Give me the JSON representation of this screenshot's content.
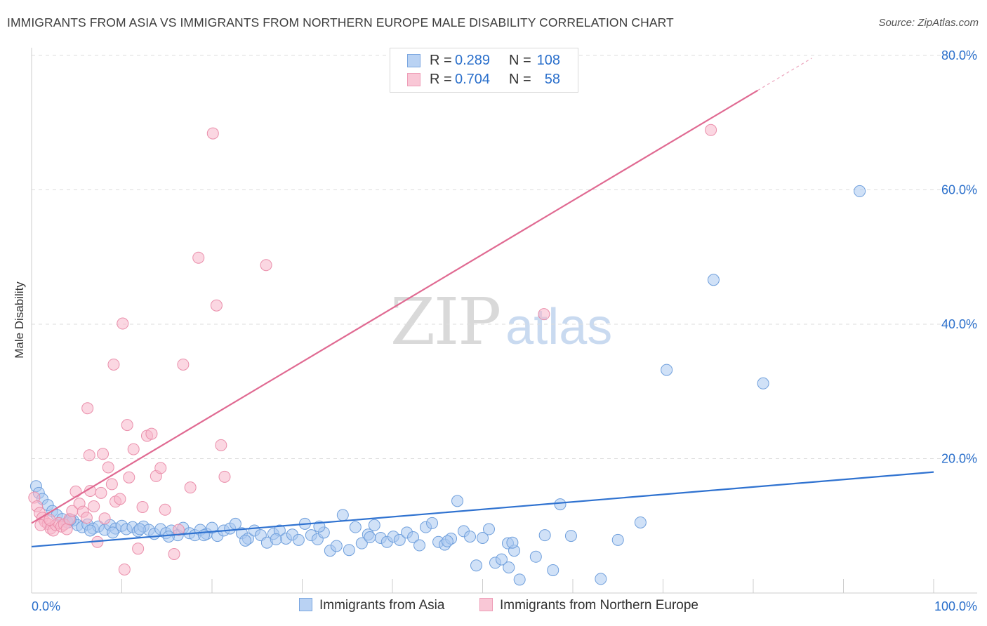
{
  "header": {
    "title": "IMMIGRANTS FROM ASIA VS IMMIGRANTS FROM NORTHERN EUROPE MALE DISABILITY CORRELATION CHART",
    "source": "Source: ZipAtlas.com"
  },
  "watermark": {
    "zip": "ZIP",
    "atlas": "atlas"
  },
  "legend_top": {
    "rows": [
      {
        "r_label": "R =",
        "r_value": "0.289",
        "n_label": "N =",
        "n_value": "108"
      },
      {
        "r_label": "R =",
        "r_value": "0.704",
        "n_label": "N =",
        "n_value": "58"
      }
    ]
  },
  "legend_bottom": {
    "items": [
      {
        "label": "Immigrants from Asia"
      },
      {
        "label": "Immigrants from Northern Europe"
      }
    ]
  },
  "colors": {
    "asia_fill": "#a9c8f0",
    "asia_stroke": "#6f9fdc",
    "asia_line": "#2f72d0",
    "europe_fill": "#f8b7cb",
    "europe_stroke": "#ea8fab",
    "europe_line": "#e06a92",
    "grid": "#dddddd",
    "tick_label": "#2a6fcb"
  },
  "chart_data": {
    "type": "scatter",
    "title": "IMMIGRANTS FROM ASIA VS IMMIGRANTS FROM NORTHERN EUROPE MALE DISABILITY CORRELATION CHART",
    "xlabel": "",
    "ylabel": "Male Disability",
    "xlim": [
      0,
      100
    ],
    "ylim": [
      0,
      80
    ],
    "x_tick_labels": [
      "0.0%",
      "100.0%"
    ],
    "y_ticks": [
      20,
      40,
      60,
      80
    ],
    "y_tick_labels": [
      "20.0%",
      "40.0%",
      "60.0%",
      "80.0%"
    ],
    "series": [
      {
        "name": "Immigrants from Asia",
        "r": 0.289,
        "n": 108,
        "trend": {
          "x": [
            0,
            100
          ],
          "y": [
            6.9,
            18.0
          ]
        },
        "points": [
          [
            0.5,
            15.9
          ],
          [
            0.8,
            14.9
          ],
          [
            1.2,
            14.0
          ],
          [
            1.8,
            13.1
          ],
          [
            2.3,
            12.2
          ],
          [
            2.8,
            11.6
          ],
          [
            3.4,
            11.0
          ],
          [
            4.0,
            10.5
          ],
          [
            4.6,
            10.8
          ],
          [
            5.1,
            10.1
          ],
          [
            5.6,
            9.8
          ],
          [
            6.2,
            10.2
          ],
          [
            6.8,
            9.6
          ],
          [
            7.4,
            9.9
          ],
          [
            8.1,
            9.4
          ],
          [
            8.7,
            10.1
          ],
          [
            9.3,
            9.6
          ],
          [
            10.0,
            10.0
          ],
          [
            10.5,
            9.5
          ],
          [
            11.2,
            9.8
          ],
          [
            11.8,
            9.2
          ],
          [
            12.4,
            9.9
          ],
          [
            13.0,
            9.4
          ],
          [
            13.6,
            8.8
          ],
          [
            14.3,
            9.5
          ],
          [
            14.9,
            8.9
          ],
          [
            15.5,
            9.3
          ],
          [
            16.2,
            8.6
          ],
          [
            16.8,
            9.7
          ],
          [
            17.5,
            8.9
          ],
          [
            18.1,
            8.6
          ],
          [
            18.7,
            9.4
          ],
          [
            19.4,
            8.8
          ],
          [
            20.0,
            9.7
          ],
          [
            20.6,
            8.5
          ],
          [
            21.3,
            9.3
          ],
          [
            22.0,
            9.6
          ],
          [
            22.6,
            10.3
          ],
          [
            23.3,
            8.9
          ],
          [
            24.0,
            8.1
          ],
          [
            24.7,
            9.3
          ],
          [
            25.4,
            8.6
          ],
          [
            26.1,
            7.5
          ],
          [
            26.8,
            8.8
          ],
          [
            27.5,
            9.3
          ],
          [
            28.2,
            8.1
          ],
          [
            28.9,
            8.7
          ],
          [
            29.6,
            7.9
          ],
          [
            30.3,
            10.3
          ],
          [
            31.0,
            8.6
          ],
          [
            31.7,
            8.0
          ],
          [
            32.4,
            9.0
          ],
          [
            33.1,
            6.3
          ],
          [
            33.8,
            7.0
          ],
          [
            34.5,
            11.6
          ],
          [
            35.2,
            6.4
          ],
          [
            35.9,
            9.8
          ],
          [
            36.6,
            7.4
          ],
          [
            37.3,
            8.7
          ],
          [
            38.0,
            10.1
          ],
          [
            38.7,
            8.2
          ],
          [
            39.4,
            7.6
          ],
          [
            40.1,
            8.4
          ],
          [
            40.8,
            7.9
          ],
          [
            41.6,
            9.0
          ],
          [
            42.3,
            8.3
          ],
          [
            43.0,
            7.1
          ],
          [
            43.7,
            9.8
          ],
          [
            44.4,
            10.4
          ],
          [
            45.1,
            7.6
          ],
          [
            45.8,
            7.2
          ],
          [
            46.5,
            8.1
          ],
          [
            47.2,
            13.7
          ],
          [
            47.9,
            9.2
          ],
          [
            48.6,
            8.4
          ],
          [
            49.3,
            4.1
          ],
          [
            50.0,
            8.2
          ],
          [
            50.7,
            9.5
          ],
          [
            51.4,
            4.5
          ],
          [
            52.1,
            5.0
          ],
          [
            52.8,
            7.4
          ],
          [
            53.5,
            6.3
          ],
          [
            54.1,
            2.0
          ],
          [
            55.9,
            5.4
          ],
          [
            56.9,
            8.6
          ],
          [
            57.8,
            3.4
          ],
          [
            58.6,
            13.2
          ],
          [
            59.8,
            8.5
          ],
          [
            63.1,
            2.1
          ],
          [
            65.0,
            7.9
          ],
          [
            67.5,
            10.5
          ],
          [
            75.6,
            46.6
          ],
          [
            70.4,
            33.2
          ],
          [
            91.8,
            59.8
          ],
          [
            81.1,
            31.2
          ],
          [
            53.3,
            7.5
          ],
          [
            52.9,
            3.8
          ],
          [
            46.1,
            7.7
          ],
          [
            37.5,
            8.3
          ],
          [
            31.9,
            9.9
          ],
          [
            27.1,
            8.0
          ],
          [
            23.7,
            7.8
          ],
          [
            19.1,
            8.6
          ],
          [
            15.2,
            8.4
          ],
          [
            12.0,
            9.5
          ],
          [
            9.0,
            9.0
          ],
          [
            6.5,
            9.3
          ],
          [
            4.3,
            10.9
          ]
        ]
      },
      {
        "name": "Immigrants from Northern Europe",
        "r": 0.704,
        "n": 58,
        "trend": {
          "x": [
            0,
            80.5
          ],
          "y": [
            10.4,
            74.8
          ]
        },
        "trend_dashed": {
          "x": [
            80.5,
            86.5
          ],
          "y": [
            74.8,
            79.6
          ]
        },
        "points": [
          [
            0.3,
            14.2
          ],
          [
            0.6,
            12.9
          ],
          [
            0.9,
            11.9
          ],
          [
            1.2,
            11.2
          ],
          [
            1.5,
            10.6
          ],
          [
            1.8,
            10.3
          ],
          [
            2.1,
            9.6
          ],
          [
            2.4,
            9.3
          ],
          [
            2.7,
            10.1
          ],
          [
            3.0,
            10.4
          ],
          [
            3.3,
            9.9
          ],
          [
            3.6,
            10.2
          ],
          [
            3.9,
            9.5
          ],
          [
            4.2,
            11.0
          ],
          [
            4.5,
            12.2
          ],
          [
            4.9,
            15.1
          ],
          [
            5.3,
            13.3
          ],
          [
            5.7,
            12.1
          ],
          [
            6.1,
            11.2
          ],
          [
            6.5,
            15.2
          ],
          [
            6.9,
            12.9
          ],
          [
            7.3,
            7.6
          ],
          [
            7.7,
            14.9
          ],
          [
            8.1,
            11.1
          ],
          [
            8.5,
            18.7
          ],
          [
            8.9,
            16.2
          ],
          [
            9.3,
            13.6
          ],
          [
            9.8,
            14.0
          ],
          [
            10.3,
            3.5
          ],
          [
            10.8,
            17.2
          ],
          [
            11.3,
            21.4
          ],
          [
            11.8,
            6.6
          ],
          [
            12.3,
            12.8
          ],
          [
            12.8,
            23.4
          ],
          [
            13.3,
            23.7
          ],
          [
            13.8,
            17.4
          ],
          [
            14.3,
            18.6
          ],
          [
            14.8,
            12.4
          ],
          [
            15.8,
            5.8
          ],
          [
            16.3,
            9.4
          ],
          [
            16.8,
            34.0
          ],
          [
            17.6,
            15.7
          ],
          [
            18.5,
            49.9
          ],
          [
            20.1,
            68.4
          ],
          [
            20.5,
            42.8
          ],
          [
            21.0,
            22.0
          ],
          [
            21.4,
            17.3
          ],
          [
            26.0,
            48.8
          ],
          [
            10.1,
            40.1
          ],
          [
            9.1,
            34.0
          ],
          [
            6.2,
            27.5
          ],
          [
            10.6,
            25.0
          ],
          [
            6.4,
            20.5
          ],
          [
            7.9,
            20.7
          ],
          [
            75.3,
            68.9
          ],
          [
            56.8,
            41.5
          ],
          [
            1.0,
            10.1
          ],
          [
            2.0,
            10.9
          ]
        ]
      }
    ]
  }
}
